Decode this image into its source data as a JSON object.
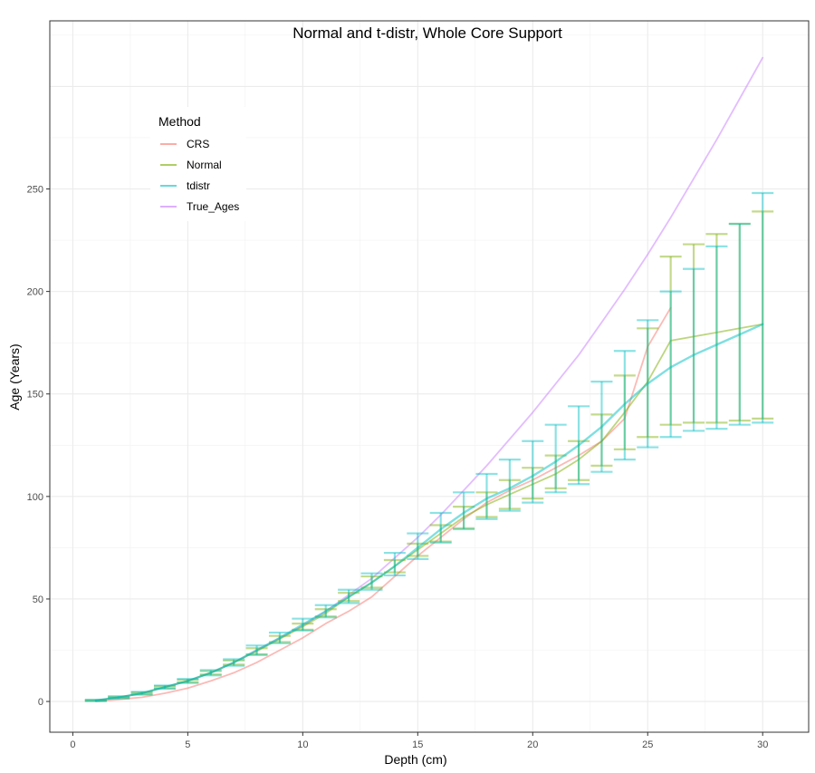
{
  "chart_data": {
    "type": "line",
    "title": "Normal and t-distr, Whole Core Support",
    "xlabel": "Depth (cm)",
    "ylabel": "Age (Years)",
    "xlim": [
      -1,
      32
    ],
    "ylim": [
      -15,
      332
    ],
    "x_ticks": [
      0,
      5,
      10,
      15,
      20,
      25,
      30
    ],
    "y_ticks": [
      0,
      50,
      100,
      150,
      200,
      250
    ],
    "grid": true,
    "legend": {
      "title": "Method",
      "placement": "top-left",
      "entries": [
        {
          "name": "CRS",
          "color": "#F8766D"
        },
        {
          "name": "Normal",
          "color": "#7CAE00"
        },
        {
          "name": "tdistr",
          "color": "#00BFC4"
        },
        {
          "name": "True_Ages",
          "color": "#C77CFF"
        }
      ]
    },
    "series": [
      {
        "name": "True_Ages",
        "color": "#C77CFF",
        "x": [
          1,
          2,
          3,
          4,
          5,
          6,
          7,
          8,
          9,
          10,
          11,
          12,
          13,
          14,
          15,
          16,
          17,
          18,
          19,
          20,
          21,
          22,
          23,
          24,
          25,
          26,
          27,
          28,
          29,
          30
        ],
        "y": [
          0.5,
          2,
          4,
          7,
          10,
          14,
          19,
          25,
          31,
          37,
          44,
          52,
          60,
          70,
          80,
          91,
          103,
          115,
          128,
          141,
          155,
          169,
          185,
          201,
          218,
          236,
          255,
          274,
          294,
          314
        ]
      },
      {
        "name": "CRS",
        "color": "#F8766D",
        "x": [
          1,
          2,
          3,
          4,
          5,
          6,
          7,
          8,
          9,
          10,
          11,
          12,
          13,
          14,
          15,
          16,
          17,
          18,
          19,
          20,
          21,
          22,
          23,
          24,
          25,
          26
        ],
        "y": [
          0,
          1,
          2,
          4,
          6.5,
          10,
          14,
          19,
          25,
          31,
          38,
          44,
          51,
          61,
          71,
          80,
          89,
          97,
          103,
          108,
          114,
          120,
          127,
          138,
          173,
          192
        ]
      },
      {
        "name": "Normal",
        "color": "#7CAE00",
        "x": [
          1,
          2,
          3,
          4,
          5,
          6,
          7,
          8,
          9,
          10,
          11,
          12,
          13,
          14,
          15,
          16,
          17,
          18,
          19,
          20,
          21,
          22,
          23,
          24,
          25,
          26,
          27,
          28,
          29,
          30
        ],
        "y": [
          0.5,
          2,
          4,
          7,
          10,
          14,
          19,
          24.5,
          30.5,
          36.5,
          43,
          51,
          58,
          66,
          74,
          82,
          90,
          96,
          101,
          106,
          111,
          118,
          127,
          141,
          156,
          176,
          178,
          180,
          182,
          184
        ],
        "err_low": [
          0.3,
          1.7,
          3.6,
          6.5,
          9.4,
          13.2,
          18,
          23,
          29,
          35,
          41.5,
          49,
          55.5,
          63,
          71,
          78,
          84.5,
          90,
          94,
          99,
          104,
          108,
          115,
          123,
          129,
          135,
          136,
          136,
          137,
          138
        ],
        "err_high": [
          0.7,
          2.3,
          4.4,
          7.5,
          10.6,
          14.8,
          20,
          26,
          32,
          38,
          45,
          53,
          61,
          69,
          77,
          86,
          95,
          102,
          108,
          114,
          120,
          127,
          140,
          159,
          182,
          217,
          223,
          228,
          233,
          239
        ]
      },
      {
        "name": "tdistr",
        "color": "#00BFC4",
        "x": [
          1,
          2,
          3,
          4,
          5,
          6,
          7,
          8,
          9,
          10,
          11,
          12,
          13,
          14,
          15,
          16,
          17,
          18,
          19,
          20,
          21,
          22,
          23,
          24,
          25,
          26,
          27,
          28,
          29,
          30
        ],
        "y": [
          0.5,
          2,
          4,
          7,
          10,
          14,
          19,
          25,
          31,
          37.5,
          44,
          51,
          58,
          66,
          75,
          84,
          92,
          99,
          104,
          110,
          117,
          125,
          134,
          145,
          155,
          163,
          169,
          174,
          179,
          184
        ],
        "err_low": [
          0.2,
          1.5,
          3.3,
          6.2,
          9,
          12.7,
          17.4,
          22.7,
          28.4,
          34.6,
          41,
          48,
          54.5,
          61.5,
          69.5,
          77.5,
          84,
          89,
          93,
          97,
          102,
          106,
          112,
          118,
          124,
          129,
          132,
          133,
          135,
          136
        ],
        "err_high": [
          0.8,
          2.5,
          4.7,
          7.8,
          11,
          15.3,
          20.6,
          27.3,
          33.6,
          40.4,
          47,
          54.5,
          62.5,
          72.5,
          82,
          92,
          102,
          111,
          118,
          127,
          135,
          144,
          156,
          171,
          186,
          200,
          211,
          222,
          233,
          248
        ]
      }
    ]
  }
}
